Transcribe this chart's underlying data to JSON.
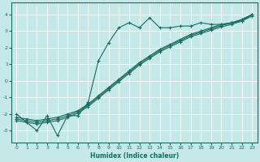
{
  "xlabel": "Humidex (Indice chaleur)",
  "ylabel": "",
  "bg_color": "#c5e8e8",
  "line_color": "#1a6b60",
  "grid_color": "#b0d8d8",
  "xlim": [
    -0.5,
    23.5
  ],
  "ylim": [
    -3.7,
    4.7
  ],
  "yticks": [
    -3,
    -2,
    -1,
    0,
    1,
    2,
    3,
    4
  ],
  "xticks": [
    0,
    1,
    2,
    3,
    4,
    5,
    6,
    7,
    8,
    9,
    10,
    11,
    12,
    13,
    14,
    15,
    16,
    17,
    18,
    19,
    20,
    21,
    22,
    23
  ],
  "line1_x": [
    0,
    1,
    2,
    3,
    4,
    5,
    6,
    7,
    8,
    9,
    10,
    11,
    12,
    13,
    14,
    15,
    16,
    17,
    18,
    19,
    20,
    21,
    22,
    23
  ],
  "line1_y": [
    -2.0,
    -2.5,
    -3.0,
    -2.1,
    -3.3,
    -2.1,
    -2.1,
    -1.3,
    1.2,
    2.3,
    3.2,
    3.5,
    3.2,
    3.8,
    3.2,
    3.2,
    3.3,
    3.3,
    3.5,
    3.4,
    3.4,
    3.5,
    3.6,
    4.0
  ],
  "line2_x": [
    0,
    1,
    2,
    3,
    4,
    5,
    6,
    7,
    8,
    9,
    10,
    11,
    12,
    13,
    14,
    15,
    16,
    17,
    18,
    19,
    20,
    21,
    22,
    23
  ],
  "line2_y": [
    -2.2,
    -2.3,
    -2.4,
    -2.3,
    -2.2,
    -2.0,
    -1.8,
    -1.4,
    -0.9,
    -0.4,
    0.1,
    0.6,
    1.1,
    1.5,
    1.9,
    2.2,
    2.5,
    2.8,
    3.0,
    3.2,
    3.4,
    3.5,
    3.7,
    4.0
  ],
  "line3_x": [
    0,
    1,
    2,
    3,
    4,
    5,
    6,
    7,
    8,
    9,
    10,
    11,
    12,
    13,
    14,
    15,
    16,
    17,
    18,
    19,
    20,
    21,
    22,
    23
  ],
  "line3_y": [
    -2.4,
    -2.5,
    -2.6,
    -2.5,
    -2.4,
    -2.2,
    -1.95,
    -1.55,
    -1.05,
    -0.55,
    -0.05,
    0.45,
    0.95,
    1.35,
    1.75,
    2.05,
    2.35,
    2.65,
    2.85,
    3.05,
    3.25,
    3.4,
    3.6,
    3.9
  ],
  "line4_x": [
    0,
    1,
    2,
    3,
    4,
    5,
    6,
    7,
    8,
    9,
    10,
    11,
    12,
    13,
    14,
    15,
    16,
    17,
    18,
    19,
    20,
    21,
    22,
    23
  ],
  "line4_y": [
    -2.3,
    -2.4,
    -2.5,
    -2.4,
    -2.3,
    -2.1,
    -1.87,
    -1.47,
    -0.97,
    -0.47,
    0.03,
    0.53,
    1.03,
    1.43,
    1.83,
    2.13,
    2.43,
    2.73,
    2.93,
    3.13,
    3.33,
    3.48,
    3.68,
    3.98
  ]
}
